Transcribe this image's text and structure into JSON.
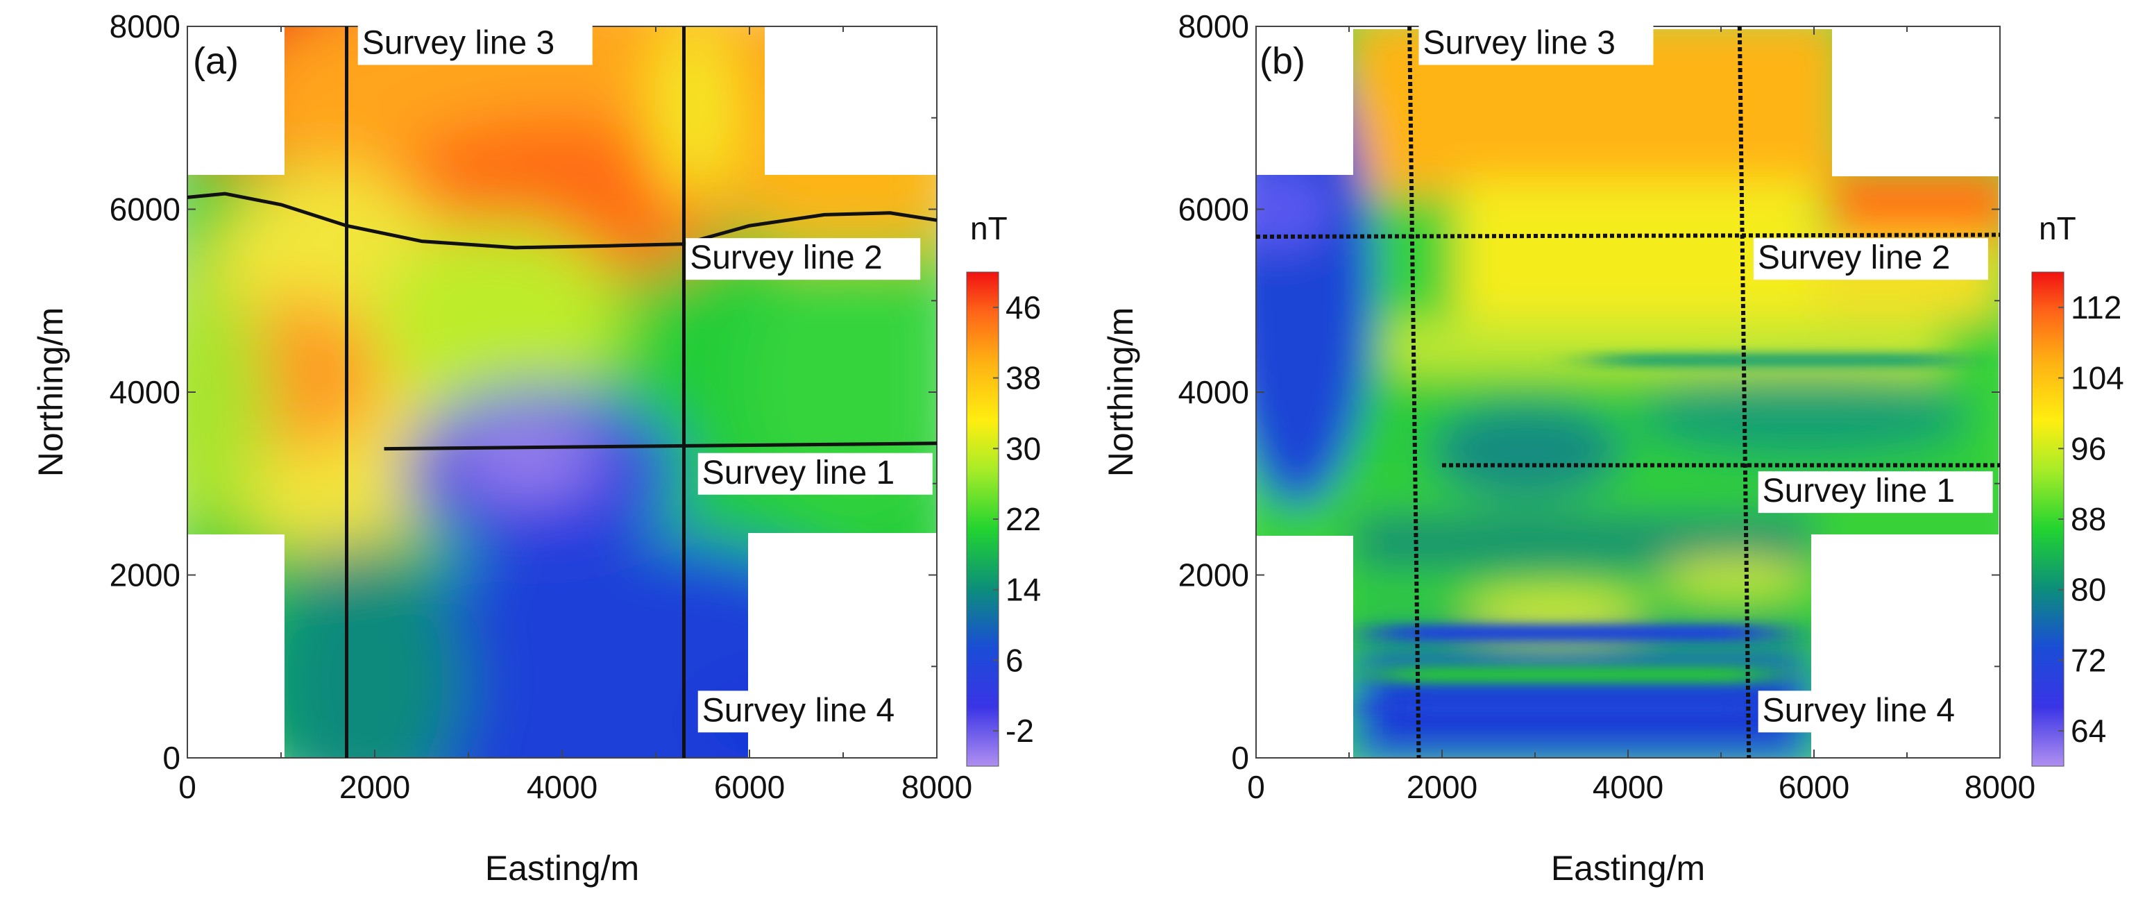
{
  "chart_data": [
    {
      "type": "heatmap",
      "panel_label": "(a)",
      "xlabel": "Easting/m",
      "ylabel": "Northing/m",
      "xlim": [
        0,
        8000
      ],
      "ylim": [
        0,
        8000
      ],
      "xticks": [
        "0",
        "2000",
        "4000",
        "6000",
        "8000"
      ],
      "yticks": [
        "0",
        "2000",
        "4000",
        "6000",
        "8000"
      ],
      "colorbar": {
        "unit": "nT",
        "range": [
          -6,
          50
        ],
        "ticks": [
          "-2",
          "6",
          "14",
          "22",
          "30",
          "38",
          "46"
        ],
        "tick_values": [
          -2,
          6,
          14,
          22,
          30,
          38,
          46
        ]
      },
      "survey_lines": [
        {
          "name": "Survey line 1",
          "x": [
            2100,
            8000
          ],
          "y": [
            3380,
            3440
          ]
        },
        {
          "name": "Survey line 2",
          "x": [
            0,
            400,
            1000,
            1700,
            2500,
            3500,
            4500,
            5300,
            6000,
            6800,
            7500,
            8000
          ],
          "y": [
            6130,
            6170,
            6050,
            5820,
            5650,
            5580,
            5600,
            5620,
            5820,
            5940,
            5960,
            5880
          ]
        },
        {
          "name": "Survey line 3",
          "x": [
            1700,
            1700
          ],
          "y": [
            0,
            8000
          ]
        },
        {
          "name": "Survey line 4",
          "x": [
            5300,
            5300
          ],
          "y": [
            0,
            8000
          ]
        }
      ],
      "annotations": [
        {
          "text": "Survey line 3",
          "x": 1820,
          "y": 7700
        },
        {
          "text": "Survey line 2",
          "x": 5320,
          "y": 5350
        },
        {
          "text": "Survey line 1",
          "x": 5450,
          "y": 3000
        },
        {
          "text": "Survey line 4",
          "x": 5450,
          "y": 400
        }
      ]
    },
    {
      "type": "heatmap",
      "panel_label": "(b)",
      "xlabel": "Easting/m",
      "ylabel": "Northing/m",
      "xlim": [
        0,
        8000
      ],
      "ylim": [
        0,
        8000
      ],
      "xticks": [
        "0",
        "2000",
        "4000",
        "6000",
        "8000"
      ],
      "yticks": [
        "0",
        "2000",
        "4000",
        "6000",
        "8000"
      ],
      "colorbar": {
        "unit": "nT",
        "range": [
          60,
          116
        ],
        "ticks": [
          "64",
          "72",
          "80",
          "88",
          "96",
          "104",
          "112"
        ],
        "tick_values": [
          64,
          72,
          80,
          88,
          96,
          104,
          112
        ]
      },
      "survey_lines": [
        {
          "name": "Survey line 1",
          "x": [
            2000,
            8000
          ],
          "y": [
            3200,
            3200
          ]
        },
        {
          "name": "Survey line 2",
          "x": [
            0,
            8000
          ],
          "y": [
            5700,
            5720
          ]
        },
        {
          "name": "Survey line 3",
          "x": [
            1650,
            1700,
            1750
          ],
          "y": [
            8000,
            4000,
            0
          ]
        },
        {
          "name": "Survey line 4",
          "x": [
            5200,
            5250,
            5300
          ],
          "y": [
            8000,
            4000,
            0
          ]
        }
      ],
      "annotations": [
        {
          "text": "Survey line 3",
          "x": 1750,
          "y": 7700
        },
        {
          "text": "Survey line 2",
          "x": 5350,
          "y": 5350
        },
        {
          "text": "Survey line 1",
          "x": 5400,
          "y": 2800
        },
        {
          "text": "Survey line 4",
          "x": 5400,
          "y": 400
        }
      ]
    }
  ]
}
